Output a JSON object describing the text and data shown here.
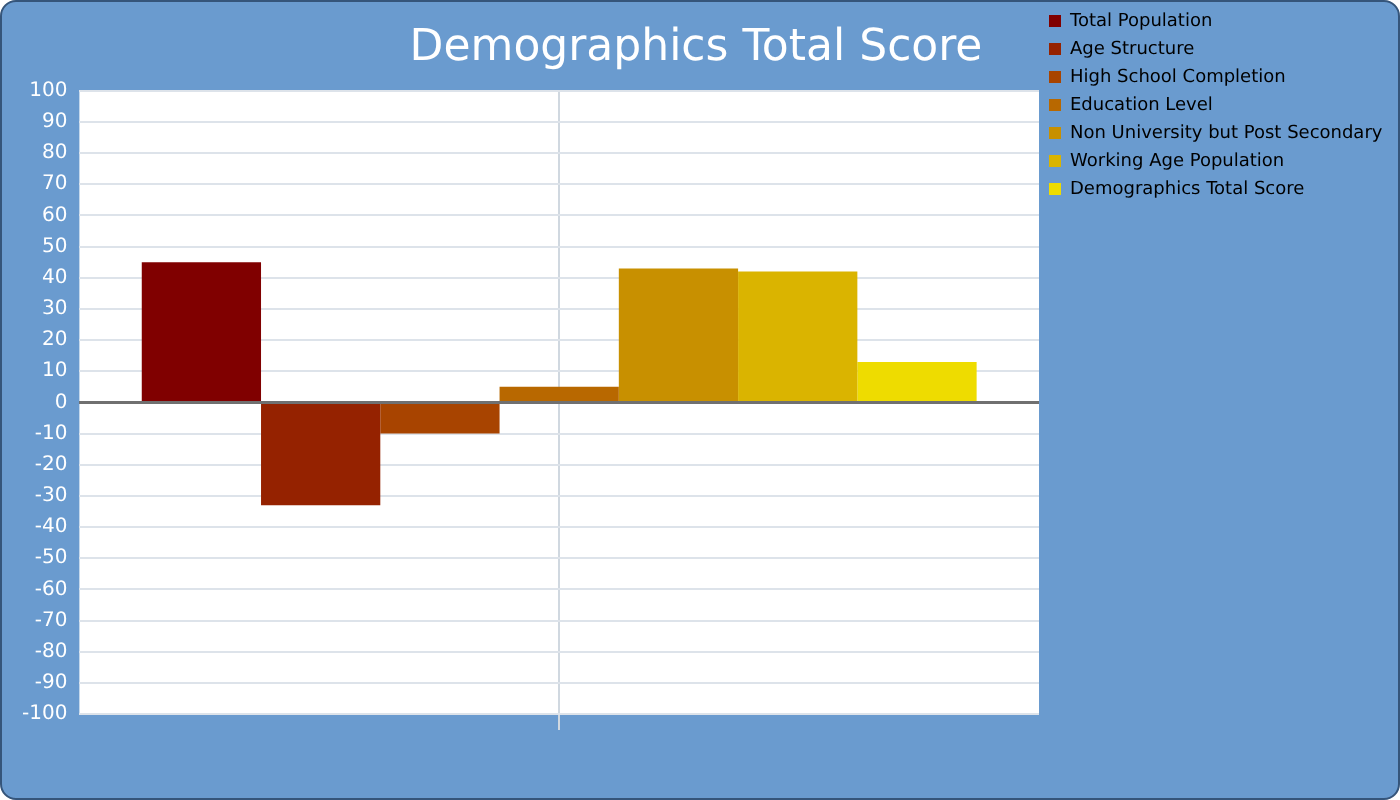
{
  "chart_data": {
    "type": "bar",
    "title": "Demographics Total Score",
    "categories": [
      null
    ],
    "series": [
      {
        "name": "Total Population",
        "color": "#800000",
        "values": [
          45
        ]
      },
      {
        "name": "Age Structure",
        "color": "#952200",
        "values": [
          -33
        ]
      },
      {
        "name": "High School Completion",
        "color": "#a84400",
        "values": [
          -10
        ]
      },
      {
        "name": "Education Level",
        "color": "#b86800",
        "values": [
          5
        ]
      },
      {
        "name": "Non University but Post Secondary",
        "color": "#c89000",
        "values": [
          43
        ]
      },
      {
        "name": "Working Age Population",
        "color": "#dab400",
        "values": [
          42
        ]
      },
      {
        "name": "Demographics Total Score",
        "color": "#eedc00",
        "values": [
          13
        ]
      }
    ],
    "ylim": [
      -100,
      100
    ],
    "yticks": [
      -100,
      -90,
      -80,
      -70,
      -60,
      -50,
      -40,
      -30,
      -20,
      -10,
      0,
      10,
      20,
      30,
      40,
      50,
      60,
      70,
      80,
      90,
      100
    ],
    "grid": true,
    "legend": "top right"
  }
}
